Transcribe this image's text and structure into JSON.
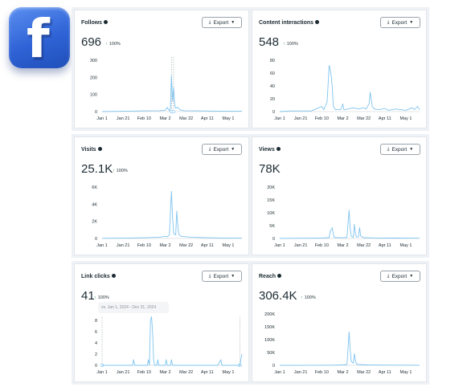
{
  "brand": {
    "logo_letter": "f"
  },
  "colors": {
    "line": "#7fc4ef",
    "axis": "#c8ccd0",
    "text": "#1c2b33",
    "up": "#2e8a57"
  },
  "export_label": "Export",
  "x_ticks": [
    "Jan 1",
    "Jan 21",
    "Feb 10",
    "Mar 2",
    "Mar 22",
    "Apr 11",
    "May 1"
  ],
  "tooltip": "vs. Jan 1, 2024 - Dec 31, 2024",
  "cards": {
    "follows": {
      "title": "Follows",
      "value": "696",
      "change": "100%",
      "y_ticks": [
        "300",
        "200",
        "100",
        "0"
      ]
    },
    "interactions": {
      "title": "Content interactions",
      "value": "548",
      "change": "100%",
      "y_ticks": [
        "80",
        "60",
        "40",
        "20",
        "0"
      ]
    },
    "visits": {
      "title": "Visits",
      "value": "25.1K",
      "change": "100%",
      "y_ticks": [
        "6K",
        "4K",
        "2K",
        "0"
      ]
    },
    "views": {
      "title": "Views",
      "value": "78K",
      "change": "",
      "y_ticks": [
        "20K",
        "15K",
        "10K",
        "5K",
        "0"
      ]
    },
    "linkclicks": {
      "title": "Link clicks",
      "value": "41",
      "change": "100%",
      "y_ticks": [
        "8",
        "6",
        "4",
        "2",
        "0"
      ]
    },
    "reach": {
      "title": "Reach",
      "value": "306.4K",
      "change": "100%",
      "y_ticks": [
        "200K",
        "150K",
        "100K",
        "50K",
        "0"
      ]
    }
  },
  "chart_data": [
    {
      "type": "line",
      "title": "Follows",
      "ylim": [
        0,
        300
      ],
      "x_range": [
        "Jan 1",
        "May 14"
      ],
      "points": [
        [
          0,
          0
        ],
        [
          20,
          2
        ],
        [
          40,
          4
        ],
        [
          55,
          5
        ],
        [
          60,
          8
        ],
        [
          62,
          25
        ],
        [
          64,
          5
        ],
        [
          65,
          15
        ],
        [
          66,
          210
        ],
        [
          67,
          60
        ],
        [
          68,
          140
        ],
        [
          69,
          40
        ],
        [
          70,
          20
        ],
        [
          72,
          25
        ],
        [
          74,
          10
        ],
        [
          78,
          5
        ],
        [
          90,
          4
        ],
        [
          110,
          3
        ],
        [
          133,
          2
        ]
      ]
    },
    {
      "type": "line",
      "title": "Content interactions",
      "ylim": [
        0,
        80
      ],
      "x_range": [
        "Jan 1",
        "May 14"
      ],
      "points": [
        [
          0,
          0
        ],
        [
          10,
          1
        ],
        [
          20,
          1
        ],
        [
          30,
          1
        ],
        [
          40,
          8
        ],
        [
          42,
          3
        ],
        [
          45,
          15
        ],
        [
          46,
          42
        ],
        [
          47,
          72
        ],
        [
          48,
          65
        ],
        [
          49,
          55
        ],
        [
          50,
          38
        ],
        [
          51,
          8
        ],
        [
          53,
          3
        ],
        [
          58,
          3
        ],
        [
          60,
          12
        ],
        [
          61,
          3
        ],
        [
          65,
          4
        ],
        [
          70,
          6
        ],
        [
          75,
          4
        ],
        [
          80,
          6
        ],
        [
          82,
          4
        ],
        [
          85,
          12
        ],
        [
          86,
          30
        ],
        [
          87,
          20
        ],
        [
          88,
          8
        ],
        [
          90,
          4
        ],
        [
          95,
          3
        ],
        [
          100,
          5
        ],
        [
          103,
          2
        ],
        [
          110,
          4
        ],
        [
          115,
          3
        ],
        [
          120,
          2
        ],
        [
          126,
          6
        ],
        [
          128,
          3
        ],
        [
          131,
          8
        ],
        [
          133,
          3
        ]
      ]
    },
    {
      "type": "line",
      "title": "Visits",
      "ylim": [
        0,
        6000
      ],
      "x_range": [
        "Jan 1",
        "May 14"
      ],
      "points": [
        [
          0,
          20
        ],
        [
          20,
          40
        ],
        [
          40,
          80
        ],
        [
          50,
          120
        ],
        [
          55,
          150
        ],
        [
          60,
          250
        ],
        [
          62,
          200
        ],
        [
          64,
          400
        ],
        [
          66,
          5500
        ],
        [
          67,
          2500
        ],
        [
          68,
          600
        ],
        [
          70,
          400
        ],
        [
          71,
          3200
        ],
        [
          72,
          1500
        ],
        [
          73,
          500
        ],
        [
          75,
          250
        ],
        [
          85,
          150
        ],
        [
          100,
          80
        ],
        [
          115,
          60
        ],
        [
          133,
          40
        ]
      ]
    },
    {
      "type": "line",
      "title": "Views",
      "ylim": [
        0,
        20000
      ],
      "x_range": [
        "Jan 1",
        "May 14"
      ],
      "points": [
        [
          0,
          0
        ],
        [
          20,
          80
        ],
        [
          40,
          150
        ],
        [
          47,
          300
        ],
        [
          48,
          2800
        ],
        [
          49,
          3400
        ],
        [
          50,
          4200
        ],
        [
          51,
          1500
        ],
        [
          52,
          400
        ],
        [
          55,
          300
        ],
        [
          60,
          250
        ],
        [
          62,
          300
        ],
        [
          64,
          400
        ],
        [
          66,
          11000
        ],
        [
          67,
          4000
        ],
        [
          68,
          800
        ],
        [
          70,
          400
        ],
        [
          71,
          5500
        ],
        [
          72,
          1800
        ],
        [
          73,
          600
        ],
        [
          75,
          700
        ],
        [
          76,
          4200
        ],
        [
          77,
          1000
        ],
        [
          80,
          300
        ],
        [
          90,
          200
        ],
        [
          110,
          150
        ],
        [
          133,
          100
        ]
      ]
    },
    {
      "type": "line",
      "title": "Link clicks",
      "ylim": [
        0,
        8
      ],
      "x_range": [
        "Jan 1",
        "May 14"
      ],
      "points": [
        [
          0,
          0
        ],
        [
          10,
          0
        ],
        [
          20,
          0
        ],
        [
          29,
          0
        ],
        [
          30,
          1
        ],
        [
          31,
          0
        ],
        [
          40,
          0
        ],
        [
          43,
          0
        ],
        [
          44,
          1
        ],
        [
          45,
          0
        ],
        [
          46,
          8
        ],
        [
          47,
          9
        ],
        [
          48,
          6
        ],
        [
          49,
          1
        ],
        [
          50,
          0
        ],
        [
          52,
          0
        ],
        [
          53,
          1
        ],
        [
          54,
          0
        ],
        [
          60,
          0
        ],
        [
          61,
          1
        ],
        [
          62,
          0
        ],
        [
          65,
          0
        ],
        [
          66,
          1
        ],
        [
          67,
          0
        ],
        [
          80,
          0
        ],
        [
          100,
          0
        ],
        [
          110,
          0
        ],
        [
          113,
          1
        ],
        [
          114,
          0
        ],
        [
          125,
          0
        ],
        [
          131,
          0
        ],
        [
          132,
          1
        ],
        [
          133,
          2
        ]
      ]
    },
    {
      "type": "line",
      "title": "Reach",
      "ylim": [
        0,
        200000
      ],
      "x_range": [
        "Jan 1",
        "May 14"
      ],
      "points": [
        [
          0,
          0
        ],
        [
          30,
          200
        ],
        [
          50,
          600
        ],
        [
          60,
          1500
        ],
        [
          64,
          3000
        ],
        [
          66,
          130000
        ],
        [
          67,
          60000
        ],
        [
          68,
          15000
        ],
        [
          70,
          8000
        ],
        [
          71,
          45000
        ],
        [
          72,
          18000
        ],
        [
          73,
          5000
        ],
        [
          75,
          3000
        ],
        [
          85,
          1500
        ],
        [
          100,
          800
        ],
        [
          133,
          400
        ]
      ]
    }
  ]
}
